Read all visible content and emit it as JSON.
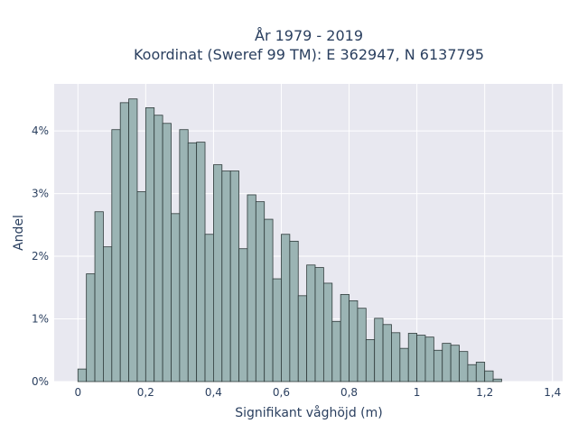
{
  "chart_data": {
    "type": "bar",
    "title": "År 1979 - 2019",
    "subtitle": "Koordinat (Sweref 99 TM): E 362947, N 6137795",
    "xlabel": "Signifikant våghöjd (m)",
    "ylabel": "Andel",
    "bin_width": 0.025,
    "bin_start": 0,
    "values": [
      0.2,
      1.72,
      2.71,
      2.15,
      4.02,
      4.45,
      4.51,
      3.03,
      4.37,
      4.25,
      4.12,
      2.68,
      4.02,
      3.81,
      3.82,
      2.35,
      3.46,
      3.36,
      3.36,
      2.12,
      2.98,
      2.87,
      2.59,
      1.64,
      2.35,
      2.24,
      1.37,
      1.86,
      1.82,
      1.57,
      0.96,
      1.39,
      1.29,
      1.17,
      0.67,
      1.01,
      0.91,
      0.78,
      0.53,
      0.77,
      0.74,
      0.71,
      0.5,
      0.61,
      0.58,
      0.48,
      0.27,
      0.31,
      0.17,
      0.04
    ],
    "xlim": [
      -0.07,
      1.43
    ],
    "ylim": [
      0,
      4.75
    ],
    "x_ticks": [
      0,
      0.2,
      0.4,
      0.6,
      0.8,
      1,
      1.2,
      1.4
    ],
    "x_tick_labels": [
      "0",
      "0,2",
      "0,4",
      "0,6",
      "0,8",
      "1",
      "1,2",
      "1,4"
    ],
    "y_ticks": [
      0,
      1,
      2,
      3,
      4
    ],
    "y_tick_labels": [
      "0%",
      "1%",
      "2%",
      "3%",
      "4%"
    ],
    "grid": true,
    "colors": {
      "bar_fill": "#9bb4b4",
      "bar_edge": "#2f3b3b",
      "plot_bg": "#e8e8f0",
      "grid": "#ffffff"
    }
  }
}
